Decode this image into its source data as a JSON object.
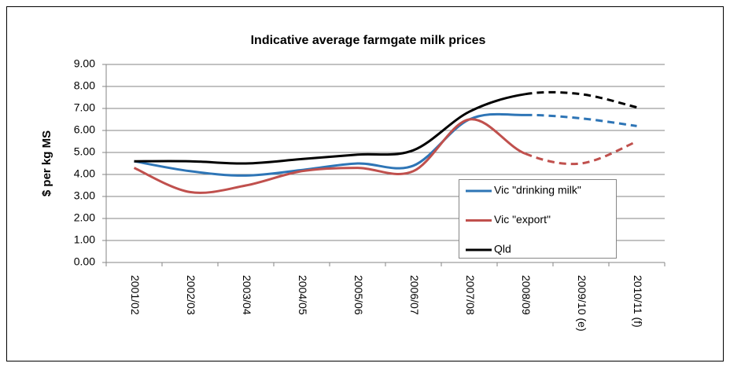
{
  "chart_data": {
    "type": "line",
    "title": "Indicative average farmgate milk prices",
    "y_label": "$ per kg MS",
    "categories": [
      "2001/02",
      "2002/03",
      "2003/04",
      "2004/05",
      "2005/06",
      "2006/07",
      "2007/08",
      "2008/09",
      "2009/10 (e)",
      "2010/11 (f)"
    ],
    "series": [
      {
        "name": "Vic \"drinking milk\"",
        "color": "#2e75b6",
        "values": [
          4.6,
          4.15,
          3.95,
          4.2,
          4.5,
          4.4,
          6.5,
          6.7,
          6.55,
          6.2
        ]
      },
      {
        "name": "Vic \"export\"",
        "color": "#c0504d",
        "values": [
          4.3,
          3.2,
          3.5,
          4.15,
          4.3,
          4.15,
          6.5,
          4.95,
          4.5,
          5.5
        ]
      },
      {
        "name": "Qld",
        "color": "#000000",
        "values": [
          4.6,
          4.6,
          4.5,
          4.7,
          4.9,
          5.1,
          6.85,
          7.65,
          7.65,
          7.05
        ]
      }
    ],
    "dashed_from": "2008/09",
    "ylim": [
      0,
      9
    ],
    "yticks": [
      {
        "value": 0,
        "label": "0.00"
      },
      {
        "value": 1,
        "label": "1.00"
      },
      {
        "value": 2,
        "label": "2.00"
      },
      {
        "value": 3,
        "label": "3.00"
      },
      {
        "value": 4,
        "label": "4.00"
      },
      {
        "value": 5,
        "label": "5.00"
      },
      {
        "value": 6,
        "label": "6.00"
      },
      {
        "value": 7,
        "label": "7.00"
      },
      {
        "value": 8,
        "label": "8.00"
      },
      {
        "value": 9,
        "label": "9.00"
      }
    ],
    "grid": true,
    "smooth": true
  }
}
